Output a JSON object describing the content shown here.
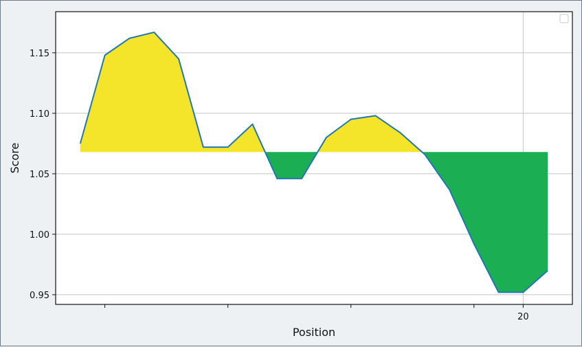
{
  "chart_data": {
    "type": "area",
    "title": "",
    "xlabel": "Position",
    "ylabel": "Score",
    "baseline": 1.068,
    "xlim": [
      1,
      22
    ],
    "ylim": [
      0.942,
      1.184
    ],
    "x_ticks": [
      3,
      8,
      13,
      18,
      20
    ],
    "x_tick_labels": {
      "20": "20"
    },
    "y_ticks": [
      0.95,
      1.0,
      1.05,
      1.1,
      1.15
    ],
    "y_tick_labels": [
      "0.95",
      "1.00",
      "1.05",
      "1.10",
      "1.15"
    ],
    "grid": true,
    "legend": "top-right",
    "colors": {
      "line": "#1f77b4",
      "above": "#f5e52a",
      "below": "#1cae52",
      "grid": "#c4c4c4"
    },
    "x": [
      2,
      3,
      4,
      5,
      6,
      7,
      8,
      9,
      10,
      11,
      12,
      13,
      14,
      15,
      16,
      17,
      18,
      19,
      20,
      21,
      22
    ],
    "values": [
      1.075,
      1.148,
      1.162,
      1.167,
      1.145,
      1.072,
      1.072,
      1.091,
      1.046,
      1.046,
      1.08,
      1.095,
      1.098,
      1.084,
      1.066,
      1.037,
      0.992,
      0.952,
      0.952,
      0.97,
      null
    ]
  }
}
